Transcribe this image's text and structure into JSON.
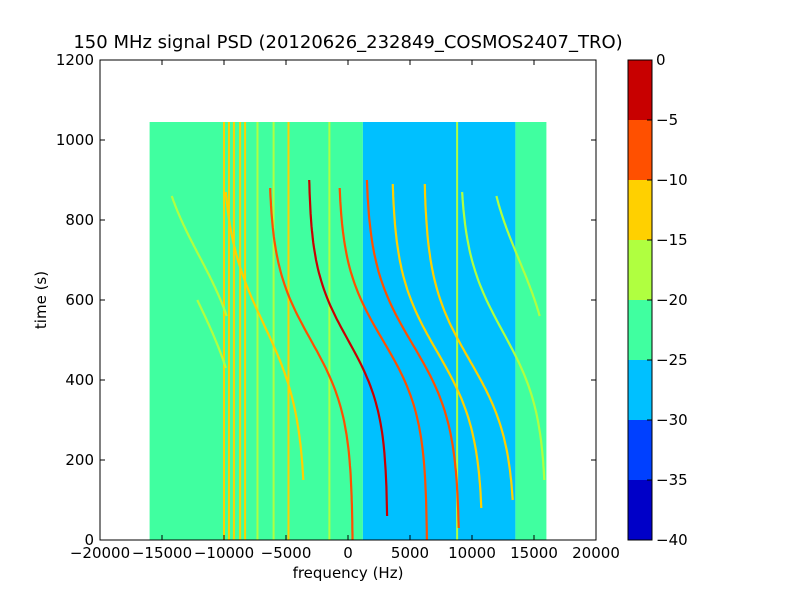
{
  "chart_data": {
    "type": "heatmap",
    "title": "150 MHz signal PSD (20120626_232849_COSMOS2407_TRO)",
    "xlabel": "frequency (Hz)",
    "ylabel": "time (s)",
    "xlim": [
      -20000,
      20000
    ],
    "ylim": [
      0,
      1200
    ],
    "x_ticks": [
      -20000,
      -15000,
      -10000,
      -5000,
      0,
      5000,
      10000,
      15000,
      20000
    ],
    "x_tick_labels": [
      "−20000",
      "−15000",
      "−10000",
      "−5000",
      "0",
      "5000",
      "10000",
      "15000",
      "20000"
    ],
    "y_ticks": [
      0,
      200,
      400,
      600,
      800,
      1000,
      1200
    ],
    "y_tick_labels": [
      "0",
      "200",
      "400",
      "600",
      "800",
      "1000",
      "1200"
    ],
    "data_extent": {
      "x": [
        -16000,
        16000
      ],
      "y": [
        0,
        1045
      ]
    },
    "background_regions": [
      {
        "x": [
          -16000,
          1200
        ],
        "level": -22.5
      },
      {
        "x": [
          1200,
          13500
        ],
        "level": -27.5
      },
      {
        "x": [
          13500,
          16000
        ],
        "level": -22.5
      }
    ],
    "vertical_lines": [
      {
        "x": -10000,
        "level": -12
      },
      {
        "x": -9600,
        "level": -12
      },
      {
        "x": -9200,
        "level": -12
      },
      {
        "x": -8700,
        "level": -14
      },
      {
        "x": -8300,
        "level": -14
      },
      {
        "x": -7300,
        "level": -16
      },
      {
        "x": -6000,
        "level": -16
      },
      {
        "x": -4800,
        "level": -14
      },
      {
        "x": -1500,
        "level": -16
      },
      {
        "x": 8800,
        "level": -20
      }
    ],
    "doppler_tracks": [
      {
        "t0": 590,
        "f0": -12000,
        "amplitude": 3800,
        "width": 500,
        "level": -17,
        "t_range": [
          430,
          600
        ]
      },
      {
        "t0": 710,
        "f0": -12000,
        "amplitude": 3800,
        "width": 450,
        "level": -17,
        "t_range": [
          560,
          860
        ]
      },
      {
        "t0": 540,
        "f0": -6800,
        "amplitude": 3400,
        "width": 450,
        "level": -15,
        "t_range": [
          150,
          870
        ]
      },
      {
        "t0": 500,
        "f0": -3000,
        "amplitude": 3400,
        "width": 380,
        "level": -7,
        "t_range": [
          0,
          880
        ]
      },
      {
        "t0": 500,
        "f0": 0,
        "amplitude": 3200,
        "width": 360,
        "level": -5,
        "t_range": [
          60,
          900
        ]
      },
      {
        "t0": 500,
        "f0": 2800,
        "amplitude": 3600,
        "width": 380,
        "level": -7,
        "t_range": [
          0,
          880
        ]
      },
      {
        "t0": 490,
        "f0": 5200,
        "amplitude": 3800,
        "width": 400,
        "level": -9,
        "t_range": [
          30,
          900
        ]
      },
      {
        "t0": 470,
        "f0": 7200,
        "amplitude": 3700,
        "width": 400,
        "level": -11,
        "t_range": [
          80,
          890
        ]
      },
      {
        "t0": 450,
        "f0": 9800,
        "amplitude": 3700,
        "width": 400,
        "level": -14,
        "t_range": [
          100,
          890
        ]
      },
      {
        "t0": 520,
        "f0": 12500,
        "amplitude": 3500,
        "width": 400,
        "level": -17,
        "t_range": [
          150,
          870
        ]
      },
      {
        "t0": 700,
        "f0": 13800,
        "amplitude": 3000,
        "width": 450,
        "level": -17,
        "t_range": [
          560,
          860
        ]
      }
    ],
    "colorbar": {
      "levels": [
        -40,
        -35,
        -30,
        -25,
        -20,
        -15,
        -10,
        -5,
        0
      ],
      "tick_labels": [
        "−40",
        "−35",
        "−30",
        "−25",
        "−20",
        "−15",
        "−10",
        "−5",
        "0"
      ],
      "colors": [
        "#0000c8",
        "#0040ff",
        "#00c0ff",
        "#40ffa0",
        "#b0ff40",
        "#ffd000",
        "#ff5000",
        "#c80000"
      ]
    }
  }
}
